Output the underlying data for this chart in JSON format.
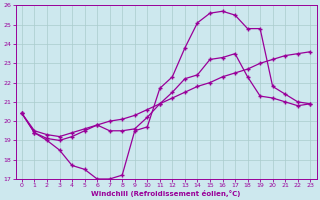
{
  "xlabel": "Windchill (Refroidissement éolien,°C)",
  "bg_color": "#cde8ee",
  "grid_color": "#aacccc",
  "line_color": "#990099",
  "xlim": [
    -0.5,
    23.5
  ],
  "ylim": [
    17,
    26
  ],
  "yticks": [
    17,
    18,
    19,
    20,
    21,
    22,
    23,
    24,
    25,
    26
  ],
  "xticks": [
    0,
    1,
    2,
    3,
    4,
    5,
    6,
    7,
    8,
    9,
    10,
    11,
    12,
    13,
    14,
    15,
    16,
    17,
    18,
    19,
    20,
    21,
    22,
    23
  ],
  "series1_x": [
    0,
    1,
    2,
    3,
    4,
    5,
    6,
    7,
    8,
    9,
    10,
    11,
    12,
    13,
    14,
    15,
    16,
    17,
    18,
    19,
    20,
    21,
    22,
    23
  ],
  "series1_y": [
    20.4,
    19.4,
    19.0,
    18.5,
    17.7,
    17.5,
    17.0,
    17.0,
    17.2,
    19.5,
    19.7,
    21.7,
    22.3,
    23.8,
    25.1,
    25.6,
    25.7,
    25.5,
    24.8,
    24.8,
    21.8,
    21.4,
    21.0,
    20.9
  ],
  "series2_x": [
    0,
    1,
    2,
    3,
    4,
    5,
    6,
    7,
    8,
    9,
    10,
    11,
    12,
    13,
    14,
    15,
    16,
    17,
    18,
    19,
    20,
    21,
    22,
    23
  ],
  "series2_y": [
    20.4,
    19.4,
    19.1,
    19.0,
    19.2,
    19.5,
    19.8,
    19.5,
    19.5,
    19.6,
    20.2,
    20.9,
    21.5,
    22.2,
    22.4,
    23.2,
    23.3,
    23.5,
    22.3,
    21.3,
    21.2,
    21.0,
    20.8,
    20.9
  ],
  "series3_x": [
    0,
    1,
    2,
    3,
    4,
    5,
    6,
    7,
    8,
    9,
    10,
    11,
    12,
    13,
    14,
    15,
    16,
    17,
    18,
    19,
    20,
    21,
    22,
    23
  ],
  "series3_y": [
    20.4,
    19.5,
    19.3,
    19.2,
    19.4,
    19.6,
    19.8,
    20.0,
    20.1,
    20.3,
    20.6,
    20.9,
    21.2,
    21.5,
    21.8,
    22.0,
    22.3,
    22.5,
    22.7,
    23.0,
    23.2,
    23.4,
    23.5,
    23.6
  ]
}
